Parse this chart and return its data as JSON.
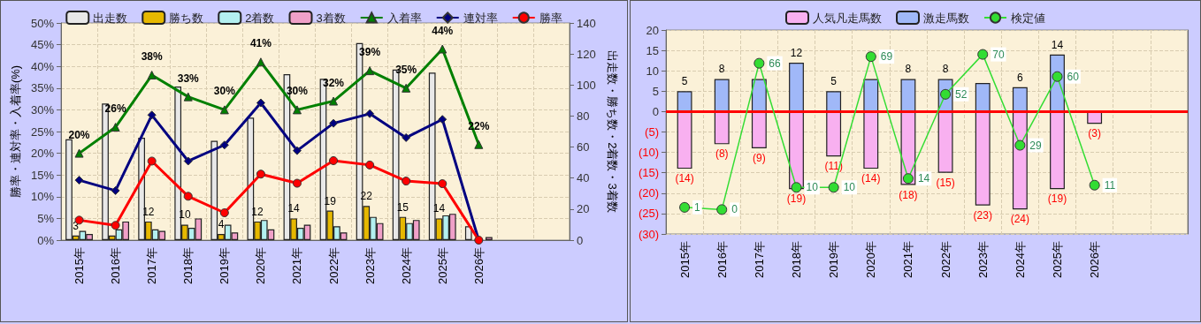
{
  "chart_data": [
    {
      "type": "bar",
      "categories": [
        "2015年",
        "2016年",
        "2017年",
        "2018年",
        "2019年",
        "2020年",
        "2021年",
        "2022年",
        "2023年",
        "2024年",
        "2025年",
        "2026年",
        null,
        null
      ],
      "ylabel": "勝率・連対率・入着率(%)",
      "y2label": "出走数・勝ち数・2着数・3着数",
      "ylim": [
        0,
        50
      ],
      "yticks": [
        {
          "value": 0,
          "label": "0%"
        },
        {
          "value": 5,
          "label": "5%"
        },
        {
          "value": 10,
          "label": "10%"
        },
        {
          "value": 15,
          "label": "15%"
        },
        {
          "value": 20,
          "label": "20%"
        },
        {
          "value": 25,
          "label": "25%"
        },
        {
          "value": 30,
          "label": "30%"
        },
        {
          "value": 35,
          "label": "35%"
        },
        {
          "value": 40,
          "label": "40%"
        },
        {
          "value": 45,
          "label": "45%"
        },
        {
          "value": 50,
          "label": "50%"
        }
      ],
      "y2lim": [
        0,
        140
      ],
      "y2ticks": [
        0,
        20,
        40,
        60,
        80,
        100,
        120,
        140
      ],
      "grid": true,
      "legend": "top",
      "series": [
        {
          "name": "出走数",
          "axis": "y2",
          "color": "#e8e8e8",
          "values": [
            65,
            88,
            66,
            99,
            64,
            79,
            107,
            104,
            127,
            110,
            108,
            9,
            null,
            null
          ]
        },
        {
          "name": "勝ち数",
          "axis": "y2",
          "color": "#e6b800",
          "values": [
            3,
            3,
            12,
            10,
            4,
            12,
            14,
            19,
            22,
            15,
            14,
            0,
            null,
            null
          ],
          "value_labels": [
            "3",
            null,
            "12",
            "10",
            "4",
            "12",
            "14",
            "19",
            "22",
            "15",
            "14",
            null,
            null,
            null
          ]
        },
        {
          "name": "2着数",
          "axis": "y2",
          "color": "#b3f0f0",
          "values": [
            6,
            7,
            7,
            8,
            10,
            13,
            8,
            9,
            15,
            11,
            16,
            0,
            null,
            null
          ]
        },
        {
          "name": "3着数",
          "axis": "y2",
          "color": "#f0a0c8",
          "values": [
            4,
            12,
            6,
            14,
            5,
            7,
            10,
            5,
            11,
            13,
            17,
            2,
            null,
            null
          ]
        },
        {
          "name": "入着率",
          "type": "line",
          "marker": "triangle",
          "color": "#008000",
          "values": [
            20,
            26,
            38,
            33,
            30,
            41,
            30,
            32,
            39,
            35,
            44,
            22,
            null,
            null
          ],
          "value_labels": [
            "20%",
            "26%",
            "38%",
            "33%",
            "30%",
            "41%",
            "30%",
            "32%",
            "39%",
            "35%",
            "44%",
            "22%",
            null,
            null
          ]
        },
        {
          "name": "連対率",
          "type": "line",
          "marker": "diamond",
          "color": "#000080",
          "values": [
            13.8,
            11.4,
            28.8,
            18.2,
            21.9,
            31.6,
            20.6,
            26.9,
            29.1,
            23.6,
            27.8,
            0,
            null,
            null
          ]
        },
        {
          "name": "勝率",
          "type": "line",
          "marker": "circle",
          "color": "#ff0000",
          "values": [
            4.6,
            3.4,
            18.2,
            10.1,
            6.3,
            15.2,
            13.1,
            18.3,
            17.3,
            13.6,
            13.0,
            0,
            null,
            null
          ]
        }
      ]
    },
    {
      "type": "bar",
      "categories": [
        "2015年",
        "2016年",
        "2017年",
        "2018年",
        "2019年",
        "2020年",
        "2021年",
        "2022年",
        "2023年",
        "2024年",
        "2025年",
        "2026年",
        null,
        null
      ],
      "ylim": [
        -30,
        20
      ],
      "yticks": [
        {
          "value": -30,
          "label": "(30)"
        },
        {
          "value": -25,
          "label": "(25)"
        },
        {
          "value": -20,
          "label": "(20)"
        },
        {
          "value": -15,
          "label": "(15)"
        },
        {
          "value": -10,
          "label": "(10)"
        },
        {
          "value": -5,
          "label": "(5)"
        },
        0,
        5,
        10,
        15,
        20
      ],
      "y2lim": [
        -11,
        81
      ],
      "grid": true,
      "legend": "top",
      "stacked": true,
      "ref_lines": [
        {
          "axis": "y",
          "value": 0,
          "color": "#ff0000"
        }
      ],
      "series": [
        {
          "name": "人気凡走馬数",
          "color": "#f8b0f0",
          "values": [
            -14,
            -8,
            -9,
            -19,
            -11,
            -14,
            -18,
            -15,
            -23,
            -24,
            -19,
            -3,
            null,
            null
          ],
          "value_labels": [
            "(14)",
            "(8)",
            "(9)",
            "(19)",
            "(11)",
            "(14)",
            "(18)",
            "(15)",
            "(23)",
            "(24)",
            "(19)",
            "(3)",
            null,
            null
          ]
        },
        {
          "name": "激走馬数",
          "color": "#a0b8f8",
          "values": [
            5,
            8,
            8,
            12,
            5,
            8,
            8,
            8,
            7,
            6,
            14,
            0,
            null,
            null
          ],
          "value_labels": [
            "5",
            "8",
            null,
            "12",
            "5",
            null,
            "8",
            "8",
            null,
            "6",
            "14",
            null,
            null,
            null
          ]
        },
        {
          "name": "検定値",
          "type": "line",
          "axis": "y2",
          "marker": "circle",
          "color": "#33dd33",
          "values": [
            1,
            0,
            66,
            10,
            10,
            69,
            14,
            52,
            70,
            29,
            60,
            11,
            null,
            null
          ],
          "value_labels": [
            "1",
            "0",
            "66",
            "10",
            "10",
            "69",
            "14",
            "52",
            "70",
            "29",
            "60",
            "11",
            null,
            null
          ]
        }
      ]
    }
  ]
}
